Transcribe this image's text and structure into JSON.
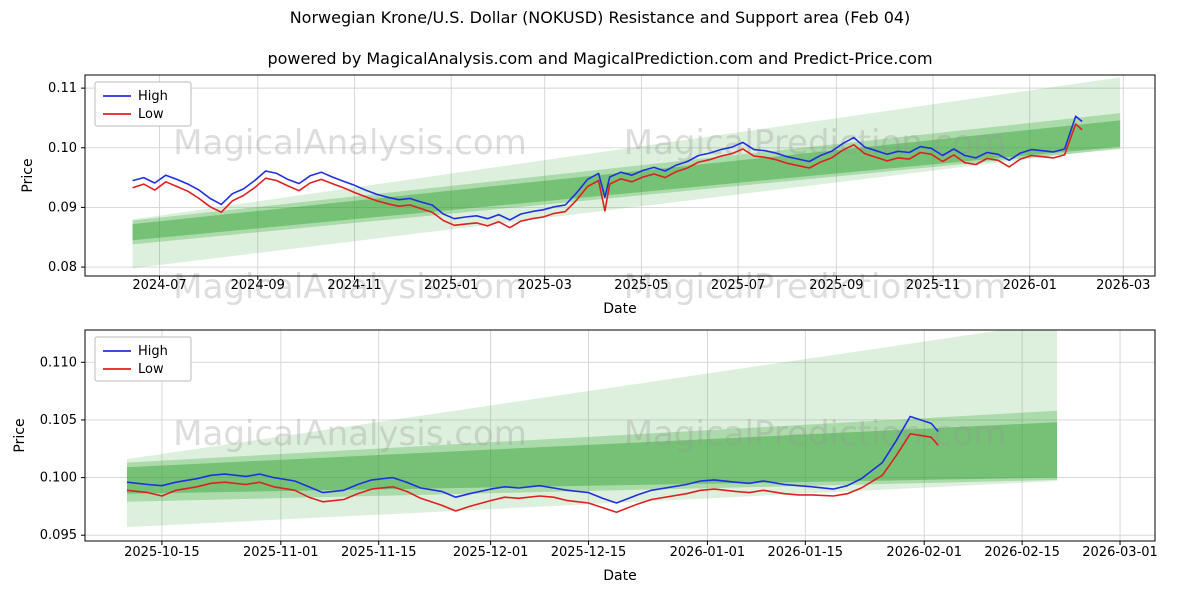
{
  "title": "Norwegian Krone/U.S. Dollar (NOKUSD) Resistance and Support area (Feb 04)",
  "subtitle": "powered by MagicalAnalysis.com and MagicalPrediction.com and Predict-Price.com",
  "watermarks": [
    "MagicalAnalysis.com",
    "MagicalPrediction.com"
  ],
  "colors": {
    "high": "#2030e0",
    "low": "#e02020",
    "band_green": "#2ca02c",
    "grid": "#d4d4d4",
    "axis": "#000000",
    "watermark": "#999999",
    "legend_border": "#bbbbbb"
  },
  "chart_data": [
    {
      "type": "line",
      "title": "",
      "xlabel": "Date",
      "ylabel": "Price",
      "legend": [
        "High",
        "Low"
      ],
      "legend_position": "upper-left",
      "grid": true,
      "xlim": [
        "2024-05-15",
        "2026-03-21"
      ],
      "ylim": [
        0.0785,
        0.1122
      ],
      "y_ticks": [
        0.08,
        0.09,
        0.1,
        0.11
      ],
      "y_tick_labels": [
        "0.08",
        "0.09",
        "0.10",
        "0.11"
      ],
      "x_ticks": [
        {
          "date": "2024-07-01",
          "label": "2024-07"
        },
        {
          "date": "2024-09-01",
          "label": "2024-09"
        },
        {
          "date": "2024-11-01",
          "label": "2024-11"
        },
        {
          "date": "2025-01-01",
          "label": "2025-01"
        },
        {
          "date": "2025-03-01",
          "label": "2025-03"
        },
        {
          "date": "2025-05-01",
          "label": "2025-05"
        },
        {
          "date": "2025-07-01",
          "label": "2025-07"
        },
        {
          "date": "2025-09-01",
          "label": "2025-09"
        },
        {
          "date": "2025-11-01",
          "label": "2025-11"
        },
        {
          "date": "2026-01-01",
          "label": "2026-01"
        },
        {
          "date": "2026-03-01",
          "label": "2026-03"
        }
      ],
      "dates": [
        "2024-06-14",
        "2024-06-21",
        "2024-06-28",
        "2024-07-05",
        "2024-07-12",
        "2024-07-19",
        "2024-07-26",
        "2024-08-02",
        "2024-08-09",
        "2024-08-16",
        "2024-08-23",
        "2024-08-30",
        "2024-09-06",
        "2024-09-13",
        "2024-09-20",
        "2024-09-27",
        "2024-10-04",
        "2024-10-11",
        "2024-10-18",
        "2024-10-25",
        "2024-11-01",
        "2024-11-08",
        "2024-11-15",
        "2024-11-22",
        "2024-11-29",
        "2024-12-06",
        "2024-12-13",
        "2024-12-20",
        "2024-12-27",
        "2025-01-03",
        "2025-01-10",
        "2025-01-17",
        "2025-01-24",
        "2025-01-31",
        "2025-02-07",
        "2025-02-14",
        "2025-02-21",
        "2025-02-28",
        "2025-03-07",
        "2025-03-14",
        "2025-03-21",
        "2025-03-28",
        "2025-04-04",
        "2025-04-08",
        "2025-04-11",
        "2025-04-18",
        "2025-04-25",
        "2025-05-02",
        "2025-05-09",
        "2025-05-16",
        "2025-05-23",
        "2025-05-30",
        "2025-06-06",
        "2025-06-13",
        "2025-06-20",
        "2025-06-27",
        "2025-07-04",
        "2025-07-11",
        "2025-07-18",
        "2025-07-25",
        "2025-08-01",
        "2025-08-08",
        "2025-08-15",
        "2025-08-22",
        "2025-08-29",
        "2025-09-05",
        "2025-09-12",
        "2025-09-19",
        "2025-09-26",
        "2025-10-03",
        "2025-10-10",
        "2025-10-17",
        "2025-10-24",
        "2025-10-31",
        "2025-11-07",
        "2025-11-14",
        "2025-11-21",
        "2025-11-28",
        "2025-12-05",
        "2025-12-12",
        "2025-12-19",
        "2025-12-26",
        "2026-01-02",
        "2026-01-09",
        "2026-01-16",
        "2026-01-23",
        "2026-01-30",
        "2026-02-03"
      ],
      "series": [
        {
          "name": "High",
          "values": [
            0.0945,
            0.095,
            0.0941,
            0.0954,
            0.0947,
            0.0939,
            0.0929,
            0.0915,
            0.0905,
            0.0923,
            0.0931,
            0.0945,
            0.0961,
            0.0957,
            0.0947,
            0.094,
            0.0953,
            0.0959,
            0.0951,
            0.0944,
            0.0937,
            0.0929,
            0.0922,
            0.0917,
            0.0913,
            0.0915,
            0.0909,
            0.0904,
            0.0889,
            0.0881,
            0.0884,
            0.0886,
            0.0881,
            0.0888,
            0.0879,
            0.0889,
            0.0893,
            0.0896,
            0.0901,
            0.0904,
            0.0924,
            0.0947,
            0.0957,
            0.0917,
            0.0951,
            0.0959,
            0.0954,
            0.0962,
            0.0967,
            0.0961,
            0.0971,
            0.0977,
            0.0987,
            0.0991,
            0.0997,
            0.1001,
            0.1009,
            0.0997,
            0.0995,
            0.0991,
            0.0985,
            0.0981,
            0.0977,
            0.0987,
            0.0994,
            0.1007,
            0.1017,
            0.1001,
            0.0995,
            0.0989,
            0.0994,
            0.0992,
            0.1002,
            0.0999,
            0.0987,
            0.0998,
            0.0987,
            0.0983,
            0.0992,
            0.0989,
            0.0979,
            0.0991,
            0.0997,
            0.0995,
            0.0993,
            0.0998,
            0.1053,
            0.1044
          ]
        },
        {
          "name": "Low",
          "values": [
            0.0933,
            0.0939,
            0.0929,
            0.0943,
            0.0935,
            0.0927,
            0.0915,
            0.0901,
            0.0892,
            0.0911,
            0.092,
            0.0933,
            0.0949,
            0.0945,
            0.0936,
            0.0928,
            0.0941,
            0.0947,
            0.094,
            0.0933,
            0.0925,
            0.0918,
            0.0911,
            0.0906,
            0.0902,
            0.0904,
            0.0898,
            0.0892,
            0.0878,
            0.087,
            0.0872,
            0.0874,
            0.0869,
            0.0876,
            0.0866,
            0.0877,
            0.0881,
            0.0884,
            0.089,
            0.0893,
            0.0912,
            0.0935,
            0.0945,
            0.0894,
            0.0939,
            0.0948,
            0.0943,
            0.0951,
            0.0956,
            0.095,
            0.096,
            0.0966,
            0.0976,
            0.098,
            0.0986,
            0.099,
            0.0998,
            0.0986,
            0.0984,
            0.098,
            0.0974,
            0.097,
            0.0966,
            0.0976,
            0.0983,
            0.0996,
            0.1005,
            0.099,
            0.0984,
            0.0978,
            0.0983,
            0.0981,
            0.0992,
            0.0989,
            0.0977,
            0.0988,
            0.0975,
            0.0972,
            0.0982,
            0.0979,
            0.0968,
            0.0981,
            0.0987,
            0.0985,
            0.0983,
            0.0988,
            0.104,
            0.103
          ]
        }
      ],
      "bands": [
        {
          "name": "outer-area",
          "x": [
            "2024-06-14",
            "2026-02-27"
          ],
          "y_bottom": [
            0.0798,
            0.1
          ],
          "y_top": [
            0.088,
            0.1118
          ],
          "opacity": 0.16
        },
        {
          "name": "middle-area",
          "x": [
            "2024-06-14",
            "2026-02-27"
          ],
          "y_bottom": [
            0.0838,
            0.0998
          ],
          "y_top": [
            0.0878,
            0.1058
          ],
          "opacity": 0.28
        },
        {
          "name": "core-area",
          "x": [
            "2024-06-14",
            "2026-02-27"
          ],
          "y_bottom": [
            0.0845,
            0.1002
          ],
          "y_top": [
            0.0872,
            0.1046
          ],
          "opacity": 0.42
        }
      ]
    },
    {
      "type": "line",
      "title": "",
      "xlabel": "Date",
      "ylabel": "Price",
      "legend": [
        "High",
        "Low"
      ],
      "legend_position": "upper-left",
      "grid": true,
      "xlim": [
        "2025-10-04",
        "2026-03-06"
      ],
      "ylim": [
        0.0945,
        0.1128
      ],
      "y_ticks": [
        0.095,
        0.1,
        0.105,
        0.11
      ],
      "y_tick_labels": [
        "0.095",
        "0.100",
        "0.105",
        "0.110"
      ],
      "x_ticks": [
        {
          "date": "2025-10-15",
          "label": "2025-10-15"
        },
        {
          "date": "2025-11-01",
          "label": "2025-11-01"
        },
        {
          "date": "2025-11-15",
          "label": "2025-11-15"
        },
        {
          "date": "2025-12-01",
          "label": "2025-12-01"
        },
        {
          "date": "2025-12-15",
          "label": "2025-12-15"
        },
        {
          "date": "2026-01-01",
          "label": "2026-01-01"
        },
        {
          "date": "2026-01-15",
          "label": "2026-01-15"
        },
        {
          "date": "2026-02-01",
          "label": "2026-02-01"
        },
        {
          "date": "2026-02-15",
          "label": "2026-02-15"
        },
        {
          "date": "2026-03-01",
          "label": "2026-03-01"
        }
      ],
      "dates": [
        "2025-10-10",
        "2025-10-13",
        "2025-10-15",
        "2025-10-17",
        "2025-10-20",
        "2025-10-22",
        "2025-10-24",
        "2025-10-27",
        "2025-10-29",
        "2025-10-31",
        "2025-11-03",
        "2025-11-05",
        "2025-11-07",
        "2025-11-10",
        "2025-11-12",
        "2025-11-14",
        "2025-11-17",
        "2025-11-19",
        "2025-11-21",
        "2025-11-24",
        "2025-11-26",
        "2025-11-28",
        "2025-12-01",
        "2025-12-03",
        "2025-12-05",
        "2025-12-08",
        "2025-12-10",
        "2025-12-12",
        "2025-12-15",
        "2025-12-17",
        "2025-12-19",
        "2025-12-22",
        "2025-12-24",
        "2025-12-29",
        "2025-12-31",
        "2026-01-02",
        "2026-01-05",
        "2026-01-07",
        "2026-01-09",
        "2026-01-12",
        "2026-01-14",
        "2026-01-16",
        "2026-01-19",
        "2026-01-21",
        "2026-01-23",
        "2026-01-26",
        "2026-01-28",
        "2026-01-30",
        "2026-02-02",
        "2026-02-03"
      ],
      "series": [
        {
          "name": "High",
          "values": [
            0.0996,
            0.0994,
            0.0993,
            0.0996,
            0.0999,
            0.1002,
            0.1003,
            0.1001,
            0.1003,
            0.1,
            0.0997,
            0.0992,
            0.0987,
            0.0989,
            0.0994,
            0.0998,
            0.1,
            0.0996,
            0.0991,
            0.0988,
            0.0983,
            0.0986,
            0.099,
            0.0992,
            0.0991,
            0.0993,
            0.0991,
            0.0989,
            0.0987,
            0.0982,
            0.0978,
            0.0985,
            0.0989,
            0.0994,
            0.0997,
            0.0998,
            0.0996,
            0.0995,
            0.0997,
            0.0994,
            0.0993,
            0.0992,
            0.099,
            0.0993,
            0.0999,
            0.1013,
            0.1032,
            0.1053,
            0.1047,
            0.104
          ]
        },
        {
          "name": "Low",
          "values": [
            0.0989,
            0.0987,
            0.0984,
            0.0989,
            0.0992,
            0.0995,
            0.0996,
            0.0994,
            0.0996,
            0.0992,
            0.0989,
            0.0983,
            0.0979,
            0.0981,
            0.0986,
            0.099,
            0.0992,
            0.0988,
            0.0982,
            0.0976,
            0.0971,
            0.0975,
            0.098,
            0.0983,
            0.0982,
            0.0984,
            0.0983,
            0.098,
            0.0978,
            0.0974,
            0.097,
            0.0977,
            0.0981,
            0.0986,
            0.0989,
            0.099,
            0.0988,
            0.0987,
            0.0989,
            0.0986,
            0.0985,
            0.0985,
            0.0984,
            0.0986,
            0.0991,
            0.1002,
            0.1019,
            0.1038,
            0.1035,
            0.1028
          ]
        }
      ],
      "bands": [
        {
          "name": "outer-area",
          "x": [
            "2025-10-10",
            "2026-02-20"
          ],
          "y_bottom": [
            0.0957,
            0.0997
          ],
          "y_top": [
            0.1016,
            0.1135
          ],
          "opacity": 0.16
        },
        {
          "name": "middle-area",
          "x": [
            "2025-10-10",
            "2026-02-20"
          ],
          "y_bottom": [
            0.0979,
            0.0998
          ],
          "y_top": [
            0.1013,
            0.1058
          ],
          "opacity": 0.28
        },
        {
          "name": "core-area",
          "x": [
            "2025-10-10",
            "2026-02-20"
          ],
          "y_bottom": [
            0.0986,
            0.1
          ],
          "y_top": [
            0.1009,
            0.1048
          ],
          "opacity": 0.42
        }
      ]
    }
  ]
}
